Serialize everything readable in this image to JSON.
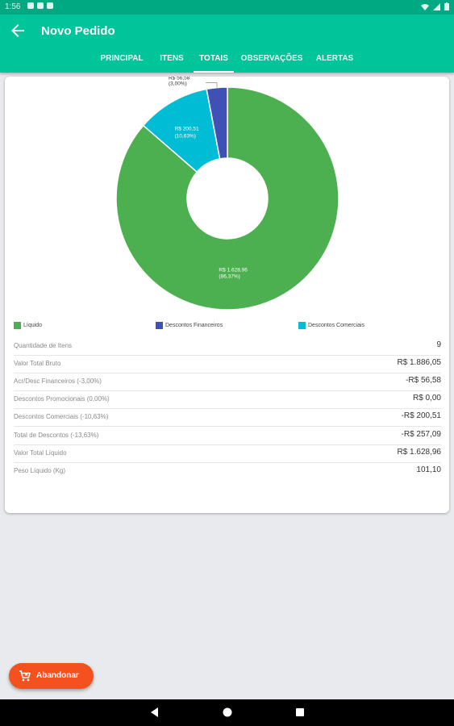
{
  "status_bar": {
    "time": "1:56"
  },
  "header": {
    "title": "Novo Pedido",
    "back_icon": "arrow-back-icon"
  },
  "tabs": [
    {
      "label": "PRINCIPAL",
      "active": false
    },
    {
      "label": "ITENS",
      "active": false
    },
    {
      "label": "TOTAIS",
      "active": true
    },
    {
      "label": "OBSERVAÇÕES",
      "active": false
    },
    {
      "label": "ALERTAS",
      "active": false
    }
  ],
  "colors": {
    "accent": "#00c49a",
    "status": "#00a981",
    "fab": "#f4511e"
  },
  "chart_data": {
    "type": "pie",
    "donut": true,
    "slices": [
      {
        "name": "Líquido",
        "value": 1628.96,
        "percent": 86.37,
        "color": "#4caf50",
        "label_value": "R$ 1.628,96",
        "label_percent": "(86,37%)"
      },
      {
        "name": "Descontos Comerciais",
        "value": 200.51,
        "percent": 10.63,
        "color": "#00bcd4",
        "label_value": "R$ 200,51",
        "label_percent": "(10,63%)"
      },
      {
        "name": "Descontos Financeiros",
        "value": 56.58,
        "percent": 3.0,
        "color": "#3f51b5",
        "label_value": "R$ 56,58",
        "label_percent": "(3,00%)"
      }
    ],
    "legend": [
      {
        "label": "Líquido",
        "color": "#4caf50"
      },
      {
        "label": "Descontos Financeiros",
        "color": "#3f51b5"
      },
      {
        "label": "Descontos Comerciais",
        "color": "#00bcd4"
      }
    ],
    "legend_position": "bottom"
  },
  "totals": [
    {
      "label": "Quantidade de Itens",
      "value": "9"
    },
    {
      "label": "Valor Total Bruto",
      "value": "R$ 1.886,05"
    },
    {
      "label": "Acr/Desc Financeiros (-3,00%)",
      "value": "-R$ 56,58"
    },
    {
      "label": "Descontos Promocionais (0,00%)",
      "value": "R$ 0,00"
    },
    {
      "label": "Descontos Comerciais (-10,63%)",
      "value": "-R$ 200,51"
    },
    {
      "label": "Total de Descontos (-13,63%)",
      "value": "-R$ 257,09"
    },
    {
      "label": "Valor Total Líquido",
      "value": "R$ 1.628,96"
    },
    {
      "label": "Peso Líquido (Kg)",
      "value": "101,10"
    }
  ],
  "fab": {
    "label": "Abandonar",
    "icon": "cart-remove-icon"
  },
  "nav": {
    "back_icon": "nav-back-icon",
    "home_icon": "nav-home-icon",
    "recents_icon": "nav-recents-icon"
  }
}
